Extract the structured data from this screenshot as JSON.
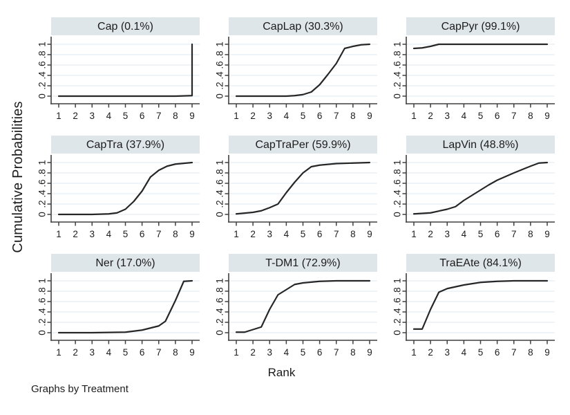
{
  "figure": {
    "y_axis_title": "Cumulative Probabilities",
    "x_axis_title": "Rank",
    "caption": "Graphs by Treatment"
  },
  "axes": {
    "x_tick_labels": [
      "1",
      "2",
      "3",
      "4",
      "5",
      "6",
      "7",
      "8",
      "9"
    ],
    "x_tick_values": [
      1,
      2,
      3,
      4,
      5,
      6,
      7,
      8,
      9
    ],
    "y_tick_labels": [
      "0",
      ".2",
      ".4",
      ".6",
      ".8",
      "1"
    ],
    "y_tick_values": [
      0,
      0.2,
      0.4,
      0.6,
      0.8,
      1
    ],
    "xlim": [
      1,
      9
    ],
    "ylim": [
      0,
      1
    ],
    "grid": "horizontal"
  },
  "colors": {
    "background": "#ffffff",
    "panel_header_bg": "#dfe6e9",
    "gridline": "#e4edf2",
    "axis": "#3f3f3f",
    "series_line": "#262626",
    "text": "#1c1c1c"
  },
  "chart_data": [
    {
      "type": "line",
      "title": "Cap (0.1%)",
      "x": [
        1,
        2,
        3,
        4,
        5,
        6,
        7,
        8,
        9,
        9
      ],
      "y": [
        0,
        0,
        0,
        0,
        0,
        0,
        0,
        0,
        0.01,
        1
      ]
    },
    {
      "type": "line",
      "title": "CapLap (30.3%)",
      "x": [
        1,
        2,
        3,
        4,
        4.5,
        5,
        5.5,
        6,
        6.5,
        7,
        7.5,
        8,
        8.5,
        9
      ],
      "y": [
        0,
        0,
        0,
        0,
        0.01,
        0.03,
        0.08,
        0.22,
        0.42,
        0.63,
        0.92,
        0.96,
        0.99,
        1
      ]
    },
    {
      "type": "line",
      "title": "CapPyr (99.1%)",
      "x": [
        1,
        1.5,
        2,
        2.5,
        3,
        9
      ],
      "y": [
        0.92,
        0.93,
        0.96,
        1,
        1,
        1
      ]
    },
    {
      "type": "line",
      "title": "CapTra (37.9%)",
      "x": [
        1,
        2,
        3,
        4,
        4.5,
        5,
        5.5,
        6,
        6.5,
        7,
        7.5,
        8,
        9
      ],
      "y": [
        0,
        0,
        0,
        0.01,
        0.03,
        0.1,
        0.25,
        0.45,
        0.72,
        0.85,
        0.93,
        0.97,
        1
      ]
    },
    {
      "type": "line",
      "title": "CapTraPer (59.9%)",
      "x": [
        1,
        2,
        2.5,
        3,
        3.5,
        4,
        4.5,
        5,
        5.5,
        6,
        7,
        8,
        9
      ],
      "y": [
        0.01,
        0.04,
        0.07,
        0.13,
        0.2,
        0.42,
        0.62,
        0.8,
        0.92,
        0.95,
        0.98,
        0.99,
        1
      ]
    },
    {
      "type": "line",
      "title": "LapVin (48.8%)",
      "x": [
        1,
        2,
        3,
        3.5,
        4,
        5,
        5.5,
        6,
        7,
        8,
        8.5,
        9
      ],
      "y": [
        0.01,
        0.03,
        0.1,
        0.15,
        0.27,
        0.47,
        0.57,
        0.66,
        0.8,
        0.93,
        0.99,
        1
      ]
    },
    {
      "type": "line",
      "title": "Ner (17.0%)",
      "x": [
        1,
        2,
        3,
        4,
        5,
        6,
        7,
        7.4,
        8,
        8.5,
        9
      ],
      "y": [
        0,
        0,
        0,
        0.005,
        0.01,
        0.05,
        0.13,
        0.22,
        0.62,
        0.99,
        1
      ]
    },
    {
      "type": "line",
      "title": "T-DM1 (72.9%)",
      "x": [
        1,
        1.5,
        2,
        2.5,
        3,
        3.5,
        4,
        4.5,
        5,
        6,
        7,
        9
      ],
      "y": [
        0.01,
        0.01,
        0.06,
        0.11,
        0.45,
        0.73,
        0.83,
        0.93,
        0.96,
        0.99,
        1,
        1
      ]
    },
    {
      "type": "line",
      "title": "TraEAte (84.1%)",
      "x": [
        1,
        1.5,
        2,
        2.5,
        3,
        4,
        5,
        6,
        7,
        9
      ],
      "y": [
        0.07,
        0.07,
        0.45,
        0.78,
        0.85,
        0.92,
        0.97,
        0.99,
        1,
        1
      ]
    }
  ]
}
